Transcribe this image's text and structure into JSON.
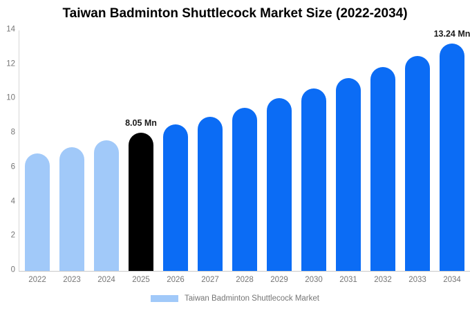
{
  "title": "Taiwan Badminton Shuttlecock Market Size (2022-2034)",
  "legend": {
    "label": "Taiwan Badminton Shuttlecock Market",
    "swatch_color": "#a1c9f9"
  },
  "colors": {
    "historical": "#a1c9f9",
    "base": "#000000",
    "forecast": "#0b6cf5",
    "axis_text": "#757575",
    "annotation_text": "#1a1a1a"
  },
  "chart_data": {
    "type": "bar",
    "title": "Taiwan Badminton Shuttlecock Market Size (2022-2034)",
    "xlabel": "",
    "ylabel": "",
    "ylim": [
      0,
      14
    ],
    "grid": false,
    "legend_position": "bottom",
    "y_ticks": [
      0,
      2,
      4,
      6,
      8,
      10,
      12,
      14
    ],
    "categories": [
      "2022",
      "2023",
      "2024",
      "2025",
      "2026",
      "2027",
      "2028",
      "2029",
      "2030",
      "2031",
      "2032",
      "2033",
      "2034"
    ],
    "values": [
      6.82,
      7.21,
      7.62,
      8.05,
      8.51,
      8.99,
      9.5,
      10.04,
      10.62,
      11.22,
      11.86,
      12.53,
      13.24
    ],
    "point_segments": [
      "historical",
      "historical",
      "historical",
      "base",
      "forecast",
      "forecast",
      "forecast",
      "forecast",
      "forecast",
      "forecast",
      "forecast",
      "forecast",
      "forecast"
    ],
    "unit": "Mn",
    "annotations": [
      {
        "category": "2025",
        "text": "8.05 Mn"
      },
      {
        "category": "2034",
        "text": "13.24 Mn"
      }
    ],
    "series_name": "Taiwan Badminton Shuttlecock Market"
  }
}
